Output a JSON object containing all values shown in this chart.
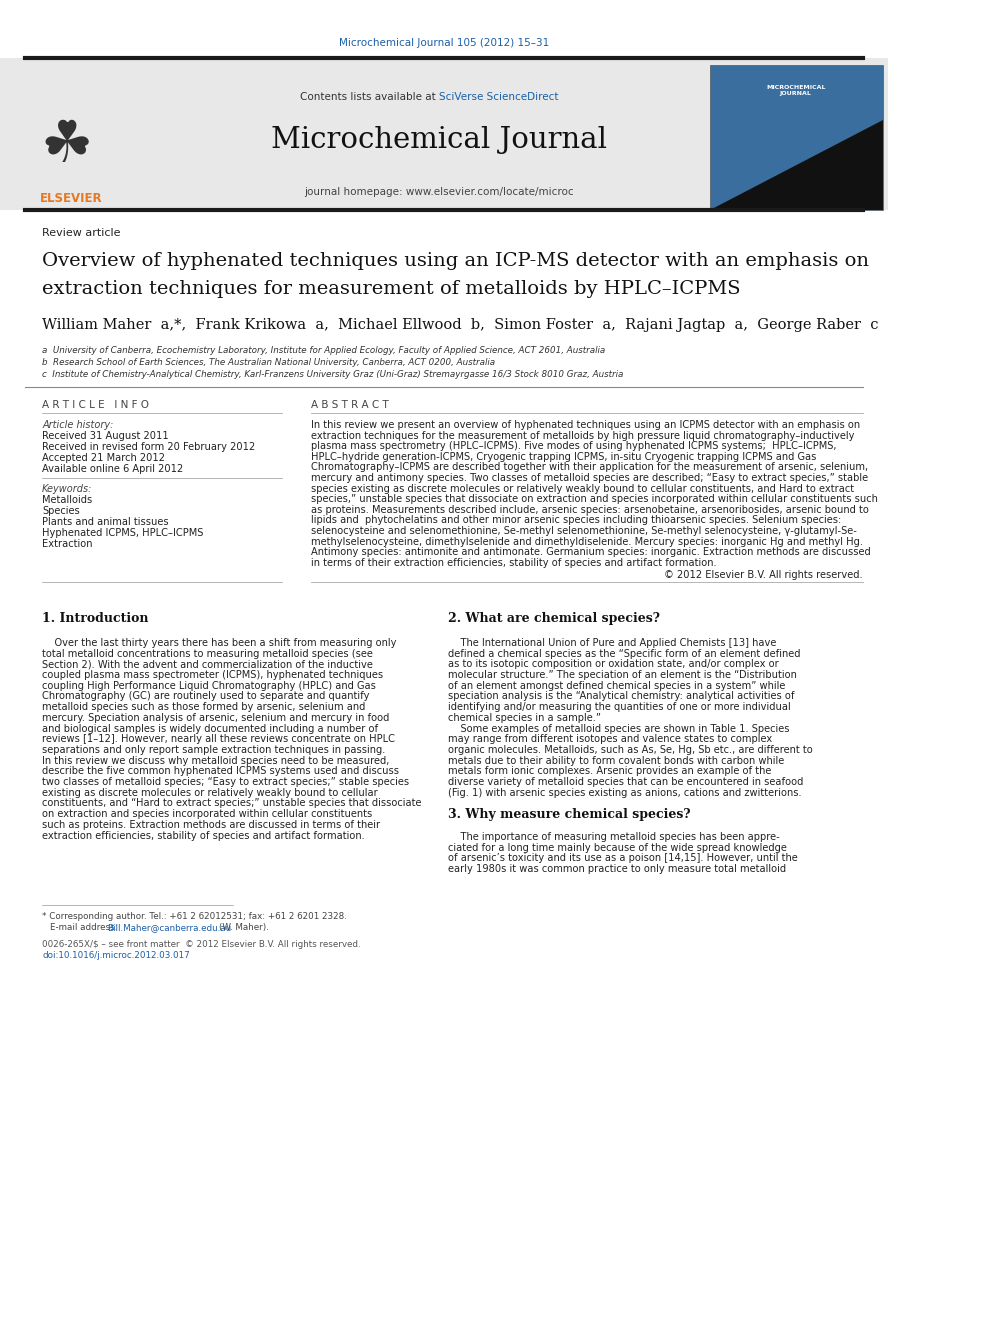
{
  "page_width": 9.92,
  "page_height": 13.23,
  "bg_color": "#ffffff",
  "top_citation": "Microchemical Journal 105 (2012) 15–31",
  "top_citation_color": "#1a5fa8",
  "header_bg": "#e8e8e8",
  "contents_text": "Contents lists available at ",
  "sciverse_text": "SciVerse ScienceDirect",
  "sciverse_color": "#1a5fa8",
  "journal_title": "Microchemical Journal",
  "journal_homepage": "journal homepage: www.elsevier.com/locate/microc",
  "thick_bar_color": "#1a1a1a",
  "article_type": "Review article",
  "paper_title_line1": "Overview of hyphenated techniques using an ICP-MS detector with an emphasis on",
  "paper_title_line2": "extraction techniques for measurement of metalloids by HPLC–ICPMS",
  "authors_line": "William Maher  a,*,  Frank Krikowa  a,  Michael Ellwood  b,  Simon Foster  a,  Rajani Jagtap  a,  George Raber  c",
  "affil_a": "a  University of Canberra, Ecochemistry Laboratory, Institute for Applied Ecology, Faculty of Applied Science, ACT 2601, Australia",
  "affil_b": "b  Research School of Earth Sciences, The Australian National University, Canberra, ACT 0200, Australia",
  "affil_c": "c  Institute of Chemistry-Analytical Chemistry, Karl-Franzens University Graz (Uni-Graz) Stremayrgasse 16/3 Stock 8010 Graz, Austria",
  "article_info_header": "A R T I C L E   I N F O",
  "abstract_header": "A B S T R A C T",
  "article_history_label": "Article history:",
  "received": "Received 31 August 2011",
  "revised": "Received in revised form 20 February 2012",
  "accepted": "Accepted 21 March 2012",
  "available": "Available online 6 April 2012",
  "keywords_label": "Keywords:",
  "keyword1": "Metalloids",
  "keyword2": "Species",
  "keyword3": "Plants and animal tissues",
  "keyword4": "Hyphenated ICPMS, HPLC–ICPMS",
  "keyword5": "Extraction",
  "copyright": "© 2012 Elsevier B.V. All rights reserved.",
  "section1_title": "1. Introduction",
  "section2_title": "2. What are chemical species?",
  "section3_title": "3. Why measure chemical species?",
  "link_color": "#1a5fa8"
}
